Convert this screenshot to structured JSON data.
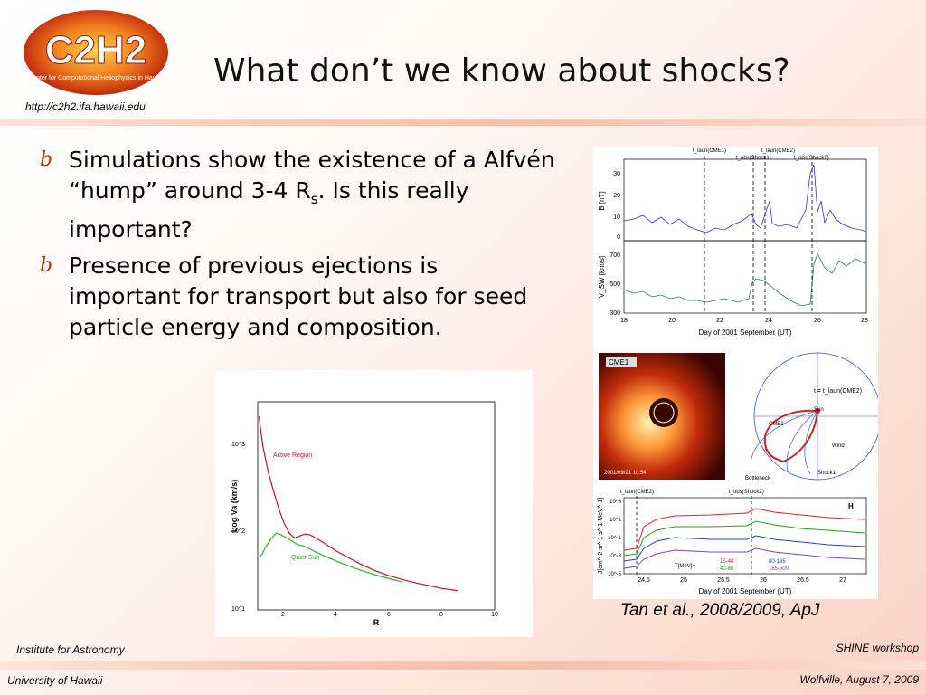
{
  "header": {
    "logo_text": "C2H2",
    "logo_tagline": "Center for Computational Heliophysics in Hawaii",
    "logo_url": "http://c2h2.ifa.hawaii.edu",
    "title": "What don’t we know about shocks?"
  },
  "bullets": [
    {
      "pre": "Simulations show the existence of a Alfvén “hump” around 3-4 R",
      "sub": "s",
      "post": ". Is this really important?"
    },
    {
      "text": "Presence of previous ejections is important for transport but also for seed particle energy and composition."
    }
  ],
  "bullet_glyph": "b",
  "right_figure": {
    "top_panel": {
      "markers": [
        "t_laun(CME1)",
        "t_obs(Shock1)",
        "t_laun(CME2)",
        "t_obs(Shock2)"
      ],
      "b_label": "B [nT]",
      "b_ticks": [
        "30",
        "20",
        "10",
        "0"
      ],
      "v_label": "V_SW [km/s]",
      "v_ticks": [
        "700",
        "500",
        "300"
      ],
      "x_ticks": [
        "18",
        "20",
        "22",
        "24",
        "26",
        "28"
      ],
      "xlabel": "Day of 2001 September (UT)"
    },
    "image_panel": {
      "label": "CME1",
      "date": "2001/09/21 10:54"
    },
    "diagram_panel": {
      "labels": [
        "t = t_laun(CME2)",
        "Sun",
        "CME1",
        "Wind",
        "Bottleneck",
        "Shock1"
      ]
    },
    "flux_panel": {
      "markers": [
        "t_laun(CME2)",
        "t_obs(Shock2)"
      ],
      "corner": "H",
      "ylabel": "J[cm^-2 sr^-1 s^-1 MeV^-1]",
      "y_ticks": [
        "10^3",
        "10^1",
        "10^-1",
        "10^-3",
        "10^-5"
      ],
      "x_ticks": [
        "24.5",
        "25",
        "25.5",
        "26",
        "26.5",
        "27"
      ],
      "xlabel": "Day of 2001 September (UT)",
      "legend_title": "T[MeV]=",
      "legend": [
        "15-40",
        "40-80",
        "80-165",
        "165-500"
      ],
      "colors": [
        "#e02020",
        "#20a020",
        "#2040d0",
        "#8040d0"
      ]
    }
  },
  "caption": "Tan et al., 2008/2009, ApJ",
  "chart_data": {
    "type": "line",
    "title": "",
    "xlabel": "R",
    "ylabel": "Log Va (km/s)",
    "x_ticks": [
      "2",
      "4",
      "6",
      "8",
      "10"
    ],
    "y_ticks": [
      "10^1",
      "10^2",
      "10^3"
    ],
    "xlim": [
      1,
      10
    ],
    "ylim": [
      10,
      3000
    ],
    "log_y": true,
    "series": [
      {
        "name": "Active Region",
        "color": "#c8102e",
        "x": [
          1.05,
          1.1,
          1.2,
          1.4,
          1.6,
          1.8,
          2.0,
          2.2,
          2.4,
          2.6,
          2.8,
          3.0,
          3.2,
          3.5,
          4.0,
          4.5,
          5.0,
          5.5,
          6.0,
          6.5,
          7.0,
          7.5,
          8.0,
          8.6
        ],
        "y": [
          2000,
          1500,
          880,
          440,
          260,
          160,
          108,
          82,
          72,
          76,
          80,
          78,
          72,
          63,
          50,
          41,
          34,
          29,
          25.5,
          23,
          21,
          19.5,
          18,
          17
        ]
      },
      {
        "name": "Quiet Sun",
        "color": "#22bb22",
        "x": [
          1.05,
          1.15,
          1.3,
          1.5,
          1.7,
          1.9,
          2.1,
          2.3,
          2.5,
          2.7,
          2.9,
          3.2,
          3.6,
          4.0,
          4.5,
          5.0,
          5.5,
          6.0,
          6.5
        ],
        "y": [
          42,
          45,
          56,
          70,
          82,
          78,
          72,
          66,
          60,
          58,
          55,
          49,
          43,
          38,
          33,
          29,
          26,
          23.5,
          21.5
        ]
      }
    ]
  },
  "footer": {
    "left1": "Institute for Astronomy",
    "left2": "University of Hawaii",
    "right1": "SHINE workshop",
    "right2": "Wolfville, August 7, 2009"
  }
}
